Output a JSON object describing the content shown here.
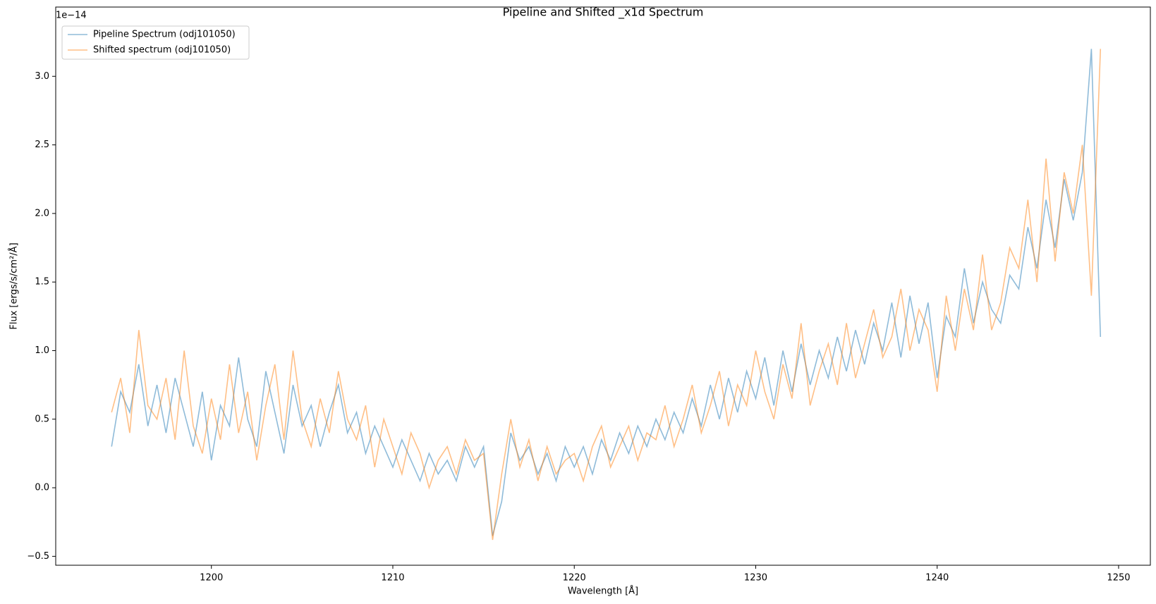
{
  "chart_data": {
    "type": "line",
    "title": "Pipeline and Shifted _x1d Spectrum",
    "x_label": "Wavelength [Å]",
    "y_label": "Flux [ergs/s/cm²/Å]",
    "y_offset_label": "1e−14",
    "x": [
      1194.5,
      1195,
      1195.5,
      1196,
      1196.5,
      1197,
      1197.5,
      1198,
      1198.5,
      1199,
      1199.5,
      1200,
      1200.5,
      1201,
      1201.5,
      1202,
      1202.5,
      1203,
      1203.5,
      1204,
      1204.5,
      1205,
      1205.5,
      1206,
      1206.5,
      1207,
      1207.5,
      1208,
      1208.5,
      1209,
      1209.5,
      1210,
      1210.5,
      1211,
      1211.5,
      1212,
      1212.5,
      1213,
      1213.5,
      1214,
      1214.5,
      1215,
      1215.5,
      1216,
      1216.5,
      1217,
      1217.5,
      1218,
      1218.5,
      1219,
      1219.5,
      1220,
      1220.5,
      1221,
      1221.5,
      1222,
      1222.5,
      1223,
      1223.5,
      1224,
      1224.5,
      1225,
      1225.5,
      1226,
      1226.5,
      1227,
      1227.5,
      1228,
      1228.5,
      1229,
      1229.5,
      1230,
      1230.5,
      1231,
      1231.5,
      1232,
      1232.5,
      1233,
      1233.5,
      1234,
      1234.5,
      1235,
      1235.5,
      1236,
      1236.5,
      1237,
      1237.5,
      1238,
      1238.5,
      1239,
      1239.5,
      1240,
      1240.5,
      1241,
      1241.5,
      1242,
      1242.5,
      1243,
      1243.5,
      1244,
      1244.5,
      1245,
      1245.5,
      1246,
      1246.5,
      1247,
      1247.5,
      1248,
      1248.5,
      1249
    ],
    "series": [
      {
        "name": "Pipeline Spectrum (odj101050)",
        "color": "#1f77b4",
        "values": [
          0.3,
          0.7,
          0.55,
          0.9,
          0.45,
          0.75,
          0.4,
          0.8,
          0.55,
          0.3,
          0.7,
          0.2,
          0.6,
          0.45,
          0.95,
          0.5,
          0.3,
          0.85,
          0.55,
          0.25,
          0.75,
          0.45,
          0.6,
          0.3,
          0.55,
          0.75,
          0.4,
          0.55,
          0.25,
          0.45,
          0.3,
          0.15,
          0.35,
          0.2,
          0.05,
          0.25,
          0.1,
          0.2,
          0.05,
          0.3,
          0.15,
          0.3,
          -0.35,
          -0.1,
          0.4,
          0.2,
          0.3,
          0.1,
          0.25,
          0.05,
          0.3,
          0.15,
          0.3,
          0.1,
          0.35,
          0.2,
          0.4,
          0.25,
          0.45,
          0.3,
          0.5,
          0.35,
          0.55,
          0.4,
          0.65,
          0.45,
          0.75,
          0.5,
          0.8,
          0.55,
          0.85,
          0.65,
          0.95,
          0.6,
          1.0,
          0.7,
          1.05,
          0.75,
          1.0,
          0.8,
          1.1,
          0.85,
          1.15,
          0.9,
          1.2,
          1.0,
          1.35,
          0.95,
          1.4,
          1.05,
          1.35,
          0.8,
          1.25,
          1.1,
          1.6,
          1.2,
          1.5,
          1.3,
          1.2,
          1.55,
          1.45,
          1.9,
          1.6,
          2.1,
          1.75,
          2.25,
          1.95,
          2.3,
          3.2,
          1.1
        ]
      },
      {
        "name": "Shifted spectrum (odj101050)",
        "color": "#ff7f0e",
        "values": [
          0.55,
          0.8,
          0.4,
          1.15,
          0.6,
          0.5,
          0.8,
          0.35,
          1.0,
          0.45,
          0.25,
          0.65,
          0.35,
          0.9,
          0.4,
          0.7,
          0.2,
          0.6,
          0.9,
          0.35,
          1.0,
          0.5,
          0.3,
          0.65,
          0.4,
          0.85,
          0.5,
          0.35,
          0.6,
          0.15,
          0.5,
          0.3,
          0.1,
          0.4,
          0.25,
          0.0,
          0.2,
          0.3,
          0.1,
          0.35,
          0.2,
          0.25,
          -0.38,
          0.1,
          0.5,
          0.15,
          0.35,
          0.05,
          0.3,
          0.1,
          0.2,
          0.25,
          0.05,
          0.3,
          0.45,
          0.15,
          0.3,
          0.45,
          0.2,
          0.4,
          0.35,
          0.6,
          0.3,
          0.5,
          0.75,
          0.4,
          0.6,
          0.85,
          0.45,
          0.75,
          0.6,
          1.0,
          0.7,
          0.5,
          0.9,
          0.65,
          1.2,
          0.6,
          0.85,
          1.05,
          0.75,
          1.2,
          0.8,
          1.05,
          1.3,
          0.95,
          1.1,
          1.45,
          1.0,
          1.3,
          1.15,
          0.7,
          1.4,
          1.0,
          1.45,
          1.15,
          1.7,
          1.15,
          1.35,
          1.75,
          1.6,
          2.1,
          1.5,
          2.4,
          1.65,
          2.3,
          2.0,
          2.5,
          1.4,
          3.2
        ]
      }
    ],
    "xlim": [
      1191.42,
      1251.75
    ],
    "ylim": [
      -0.565,
      3.505
    ],
    "xticks": [
      1200,
      1210,
      1220,
      1230,
      1240,
      1250
    ],
    "yticks": [
      {
        "value": -0.5,
        "label": "−0.5"
      },
      {
        "value": 0,
        "label": "0.0"
      },
      0.5,
      {
        "value": 1,
        "label": "1.0"
      },
      1.5,
      {
        "value": 2,
        "label": "2.0"
      },
      2.5,
      {
        "value": 3,
        "label": "3.0"
      }
    ],
    "grid": false,
    "legend": "upper left",
    "line_opacity": 0.5
  }
}
